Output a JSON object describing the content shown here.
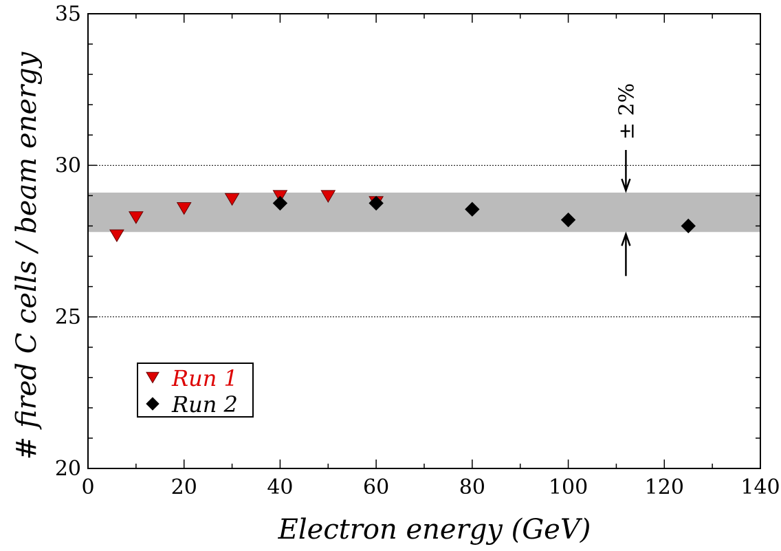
{
  "chart_data": {
    "type": "scatter",
    "xlabel": "Electron energy (GeV)",
    "ylabel": "# fired C cells / beam energy",
    "xlim": [
      0,
      140
    ],
    "ylim": [
      20,
      35
    ],
    "x_ticks": [
      "0",
      "20",
      "40",
      "60",
      "80",
      "100",
      "120",
      "140"
    ],
    "y_ticks": [
      "20",
      "25",
      "30",
      "35"
    ],
    "grid_y": [
      25,
      30
    ],
    "band": {
      "y_low": 27.8,
      "y_high": 29.1,
      "color": "#bbbbbb"
    },
    "annotation": {
      "label": "± 2%",
      "x": 112
    },
    "legend_position": "bottom-left",
    "series": [
      {
        "name": "Run 1",
        "color": "#dd0000",
        "marker": "down-triangle",
        "x": [
          6,
          10,
          20,
          30,
          40,
          50,
          60
        ],
        "y": [
          27.7,
          28.3,
          28.6,
          28.9,
          29.0,
          29.0,
          28.8
        ]
      },
      {
        "name": "Run 2",
        "color": "#000000",
        "marker": "diamond",
        "x": [
          40,
          60,
          80,
          100,
          125
        ],
        "y": [
          28.75,
          28.75,
          28.55,
          28.2,
          28.0
        ]
      }
    ]
  }
}
